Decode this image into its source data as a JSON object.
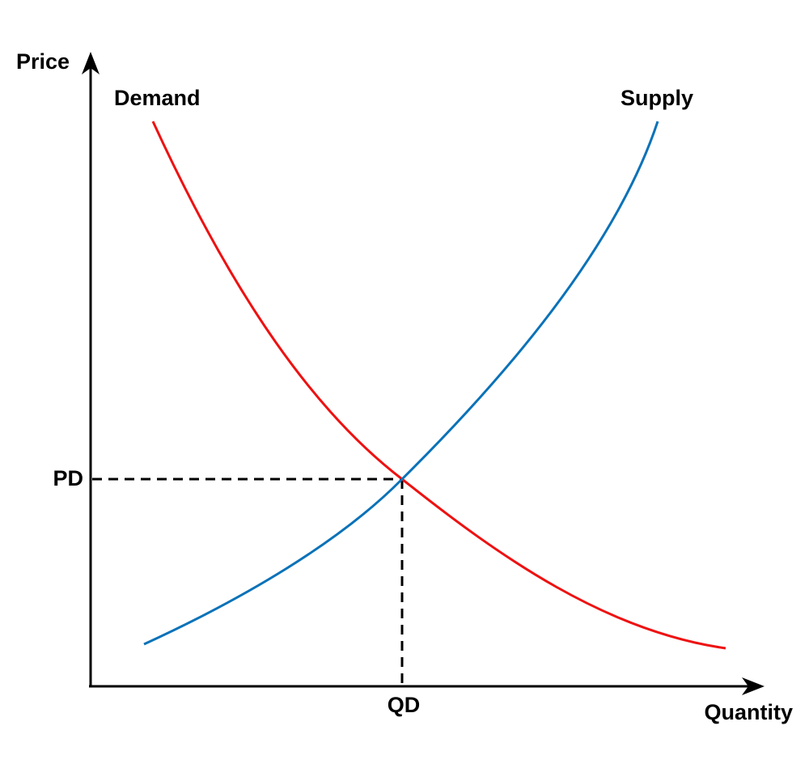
{
  "axes": {
    "y_label": "Price",
    "x_label": "Quantity"
  },
  "curves": [
    {
      "label": "Demand"
    },
    {
      "label": "Supply"
    }
  ],
  "equilibrium": {
    "price_label": "PD",
    "quantity_label": "QD"
  }
}
